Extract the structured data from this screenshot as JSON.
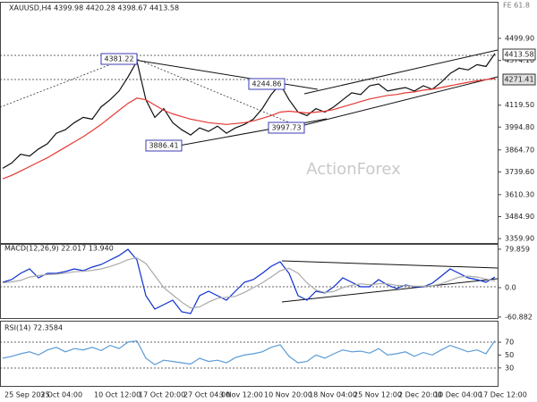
{
  "chart_data": [
    {
      "type": "line",
      "title": "XAUUSD,H4 4399.98 4420.28 4398.67 4413.58",
      "subtitle": "FE 61.8",
      "watermark": "ActionForex",
      "ylim": [
        3335,
        4703
      ],
      "yticks": [
        {
          "value": 4499.9,
          "label": "4499.90"
        },
        {
          "value": 4374.1,
          "label": "4374.10"
        },
        {
          "value": 4119.5,
          "label": "4119.50"
        },
        {
          "value": 3994.8,
          "label": "3994.80"
        },
        {
          "value": 3864.7,
          "label": "3864.70"
        },
        {
          "value": 3739.6,
          "label": "3739.60"
        },
        {
          "value": 3610.3,
          "label": "3610.30"
        },
        {
          "value": 3484.9,
          "label": "3484.90"
        },
        {
          "value": 3359.9,
          "label": "3359.90"
        }
      ],
      "annotations": [
        "4381.22",
        "4244.86",
        "3997.73",
        "3886.41",
        "4413.58",
        "4271.41"
      ],
      "series": [
        {
          "name": "XAUUSD",
          "color": "#111111",
          "values": [
            3760,
            3790,
            3840,
            3830,
            3870,
            3900,
            3960,
            3980,
            4020,
            4050,
            4040,
            4110,
            4150,
            4200,
            4280,
            4370,
            4150,
            4050,
            4100,
            4020,
            3980,
            3950,
            3990,
            3970,
            4000,
            3960,
            3990,
            4010,
            4040,
            4100,
            4180,
            4240,
            4150,
            4080,
            4060,
            4100,
            4080,
            4110,
            4150,
            4190,
            4180,
            4230,
            4240,
            4200,
            4210,
            4220,
            4200,
            4230,
            4210,
            4250,
            4300,
            4330,
            4320,
            4350,
            4340,
            4413.58
          ]
        },
        {
          "name": "MA",
          "color": "#e53935",
          "values": [
            3700,
            3720,
            3745,
            3770,
            3795,
            3820,
            3850,
            3880,
            3910,
            3940,
            3975,
            4010,
            4050,
            4090,
            4130,
            4160,
            4150,
            4120,
            4090,
            4070,
            4055,
            4040,
            4030,
            4020,
            4015,
            4010,
            4015,
            4020,
            4030,
            4045,
            4060,
            4080,
            4085,
            4080,
            4075,
            4080,
            4085,
            4095,
            4110,
            4125,
            4140,
            4155,
            4165,
            4175,
            4180,
            4190,
            4195,
            4205,
            4210,
            4220,
            4230,
            4240,
            4250,
            4258,
            4265,
            4271.41
          ]
        }
      ]
    },
    {
      "type": "line",
      "title": "MACD(12,26,9) 22.017 13.940",
      "ylim": [
        -63,
        89
      ],
      "yticks": [
        79.859,
        {
          "value": 0,
          "label": "0.0"
        },
        -60.882
      ],
      "series": [
        {
          "name": "MACD",
          "color": "#0d2fd1",
          "values": [
            11.1,
            16.7,
            29.6,
            38.9,
            20.4,
            29.6,
            29.6,
            33.3,
            38.9,
            35.2,
            42.6,
            48.1,
            57.4,
            66.6,
            79.6,
            57.4,
            -16.7,
            -44.4,
            -35.2,
            -25.9,
            -50,
            -53.7,
            -16.7,
            -7.4,
            -16.7,
            -25.9,
            -7.4,
            11.1,
            16.7,
            29.6,
            44.4,
            53.7,
            29.6,
            -16.7,
            -25.9,
            -7.4,
            -11.1,
            1.9,
            20.4,
            11.1,
            1.9,
            1.9,
            16.7,
            5.6,
            -1.9,
            5.6,
            1.9,
            1.9,
            9.3,
            24,
            38.9,
            29.6,
            20.4,
            16.7,
            11.1,
            22.017
          ]
        },
        {
          "name": "Signal",
          "color": "#aaaaaa",
          "values": [
            10,
            12,
            15,
            22,
            25,
            27,
            28,
            30,
            33,
            34,
            36,
            39,
            44,
            50,
            58,
            62,
            50,
            25,
            0,
            -15,
            -30,
            -42,
            -40,
            -30,
            -22,
            -20,
            -18,
            -10,
            0,
            10,
            22,
            35,
            40,
            30,
            10,
            -5,
            -10,
            -8,
            0,
            5,
            8,
            6,
            8,
            8,
            5,
            4,
            3,
            3,
            4,
            8,
            15,
            22,
            24,
            22,
            18,
            13.94
          ]
        }
      ]
    },
    {
      "type": "line",
      "title": "RSI(14) 72.3584",
      "ylim": [
        2,
        102
      ],
      "yticks": [
        70,
        50,
        30
      ],
      "categories": [
        null,
        null,
        "25 Sep 2025",
        null,
        null,
        null,
        "3 Oct 04:00",
        null,
        null,
        null,
        null,
        null,
        "10 Oct 12:00",
        null,
        null,
        null,
        null,
        "17 Oct 20:00",
        null,
        null,
        null,
        null,
        "27 Oct 04:00",
        null,
        null,
        null,
        "3 Nov 12:00",
        null,
        null,
        null,
        null,
        "10 Nov 20:00",
        null,
        null,
        null,
        null,
        "18 Nov 04:00",
        null,
        null,
        null,
        null,
        "25 Nov 12:00",
        null,
        null,
        null,
        null,
        "2 Dec 20:00",
        null,
        null,
        null,
        "10 Dec 04:00",
        null,
        null,
        null,
        null,
        "17 Dec 12:00"
      ],
      "series": [
        {
          "name": "RSI",
          "color": "#5b9bd5",
          "values": [
            45,
            48,
            52,
            55,
            50,
            58,
            62,
            55,
            60,
            58,
            62,
            57,
            65,
            60,
            70,
            72,
            45,
            35,
            42,
            40,
            38,
            36,
            45,
            40,
            42,
            38,
            46,
            50,
            52,
            55,
            62,
            66,
            48,
            38,
            40,
            50,
            45,
            52,
            58,
            55,
            56,
            53,
            60,
            50,
            52,
            55,
            48,
            54,
            50,
            58,
            65,
            60,
            55,
            58,
            52,
            72.3584
          ]
        }
      ]
    }
  ]
}
